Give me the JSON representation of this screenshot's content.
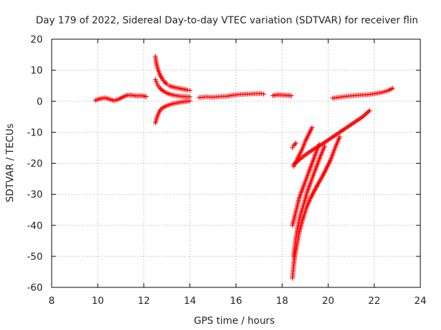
{
  "chart_data": {
    "type": "scatter",
    "title": "Day 179 of 2022, Sidereal Day-to-day VTEC variation (SDTVAR) for receiver flin",
    "xlabel": "GPS time / hours",
    "ylabel": "SDTVAR / TECUs",
    "xlim": [
      8,
      24
    ],
    "ylim": [
      -60,
      20
    ],
    "xticks": [
      "8",
      "10",
      "12",
      "14",
      "16",
      "18",
      "20",
      "22",
      "24"
    ],
    "yticks": [
      "20",
      "10",
      "0",
      "-10",
      "-20",
      "-30",
      "-40",
      "-50",
      "-60"
    ],
    "grid": true,
    "marker": "plus",
    "color": "#ff0000",
    "series": [
      {
        "x": [
          9.9,
          10.1,
          10.3,
          10.5,
          10.7,
          10.9,
          11.1,
          11.3,
          11.5,
          11.7,
          11.9,
          12.1
        ],
        "y": [
          0.3,
          0.8,
          1.1,
          0.7,
          0.2,
          0.6,
          1.4,
          2.0,
          1.9,
          1.7,
          1.8,
          1.5
        ]
      },
      {
        "x": [
          12.5,
          12.55,
          12.6,
          12.65,
          12.7,
          12.8,
          12.9,
          13.0
        ],
        "y": [
          14.5,
          12.0,
          10.5,
          9.5,
          8.5,
          7.2,
          6.2,
          5.5
        ]
      },
      {
        "x": [
          13.1,
          13.3,
          13.5,
          13.7,
          13.9,
          14.0
        ],
        "y": [
          5.0,
          4.5,
          4.2,
          3.9,
          3.6,
          3.5
        ]
      },
      {
        "x": [
          12.5,
          12.6,
          12.7,
          12.8,
          13.0,
          13.2,
          13.4,
          13.6,
          13.8,
          14.0
        ],
        "y": [
          7.0,
          5.2,
          4.2,
          3.5,
          2.6,
          2.1,
          1.8,
          1.6,
          1.5,
          1.4
        ]
      },
      {
        "x": [
          12.5,
          12.6,
          12.7,
          12.8,
          13.0,
          13.2,
          13.4,
          13.6,
          13.8,
          14.0
        ],
        "y": [
          -7.0,
          -4.5,
          -3.0,
          -2.2,
          -1.4,
          -0.9,
          -0.6,
          -0.3,
          -0.1,
          0.1
        ]
      },
      {
        "x": [
          14.4,
          14.7,
          15.0,
          15.3,
          15.6,
          15.9,
          16.2,
          16.5,
          16.8,
          17.1,
          17.2
        ],
        "y": [
          1.2,
          1.4,
          1.3,
          1.5,
          1.6,
          2.0,
          2.2,
          2.3,
          2.4,
          2.5,
          2.3
        ]
      },
      {
        "x": [
          17.6,
          17.8,
          18.0,
          18.2,
          18.4
        ],
        "y": [
          1.8,
          2.1,
          2.0,
          1.9,
          1.8
        ]
      },
      {
        "x": [
          20.2,
          20.5,
          20.8,
          21.1,
          21.4,
          21.7,
          22.0,
          22.3,
          22.6,
          22.8
        ],
        "y": [
          1.0,
          1.3,
          1.6,
          1.8,
          2.0,
          2.1,
          2.4,
          2.8,
          3.4,
          4.2
        ]
      },
      {
        "x": [
          18.45,
          18.5,
          18.6
        ],
        "y": [
          -15.0,
          -14.3,
          -13.5
        ]
      },
      {
        "x": [
          18.5,
          18.6,
          18.7,
          18.8,
          18.9,
          19.0,
          19.1,
          19.2,
          19.3
        ],
        "y": [
          -21.0,
          -19.5,
          -18.0,
          -16.5,
          -15.0,
          -13.0,
          -11.5,
          -10.0,
          -8.5
        ]
      },
      {
        "x": [
          18.5,
          18.8,
          19.1,
          19.4,
          19.7,
          20.0,
          20.3,
          20.6,
          20.9,
          21.2,
          21.5,
          21.8
        ],
        "y": [
          -20.5,
          -18.5,
          -16.8,
          -15.3,
          -14.0,
          -12.5,
          -11.0,
          -9.5,
          -8.0,
          -6.5,
          -5.0,
          -3.0
        ]
      },
      {
        "x": [
          18.45,
          18.55,
          18.65,
          18.75,
          18.9,
          19.05,
          19.2,
          19.35,
          19.5,
          19.6
        ],
        "y": [
          -40.0,
          -37.0,
          -34.0,
          -31.0,
          -28.0,
          -25.0,
          -22.0,
          -19.0,
          -16.0,
          -14.0
        ]
      },
      {
        "x": [
          18.5,
          18.55,
          18.6,
          18.7,
          18.8,
          18.95,
          19.1,
          19.3,
          19.5,
          19.7,
          19.85
        ],
        "y": [
          -50.0,
          -47.0,
          -44.0,
          -40.0,
          -36.5,
          -33.0,
          -29.0,
          -25.0,
          -21.0,
          -17.0,
          -14.5
        ]
      },
      {
        "x": [
          18.45,
          18.5,
          18.55,
          18.65,
          18.75,
          18.9,
          19.05,
          19.25,
          19.5,
          19.8,
          20.1,
          20.3,
          20.5
        ],
        "y": [
          -57.0,
          -53.0,
          -50.0,
          -46.0,
          -42.0,
          -38.0,
          -34.5,
          -31.0,
          -27.5,
          -23.5,
          -19.0,
          -15.0,
          -11.5
        ]
      }
    ]
  }
}
